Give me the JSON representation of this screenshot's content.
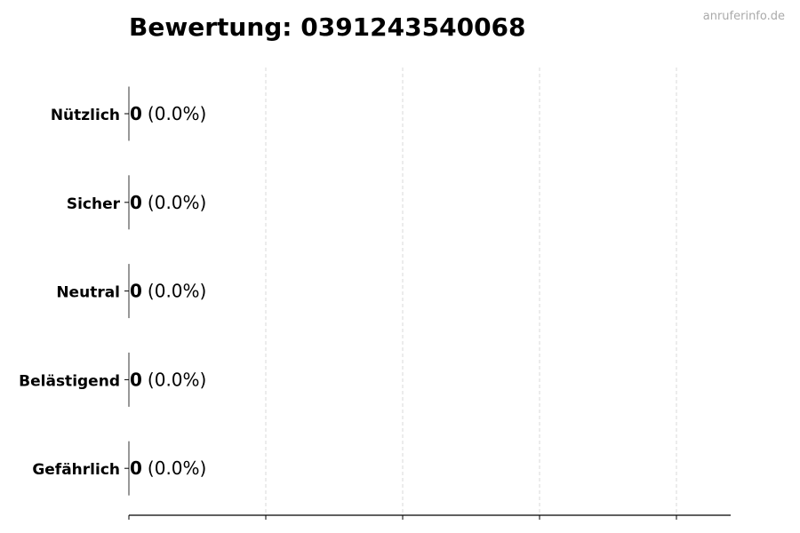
{
  "watermark": "anruferinfo.de",
  "chart_data": {
    "type": "bar",
    "orientation": "horizontal",
    "title": "Bewertung: 0391243540068",
    "categories": [
      "Nützlich",
      "Sicher",
      "Neutral",
      "Belästigend",
      "Gefährlich"
    ],
    "values": [
      0,
      0,
      0,
      0,
      0
    ],
    "data_labels": [
      {
        "count": "0",
        "percent": "(0.0%)"
      },
      {
        "count": "0",
        "percent": "(0.0%)"
      },
      {
        "count": "0",
        "percent": "(0.0%)"
      },
      {
        "count": "0",
        "percent": "(0.0%)"
      },
      {
        "count": "0",
        "percent": "(0.0%)"
      }
    ],
    "xlabel": "",
    "ylabel": "",
    "x_tick_labels_shown": false,
    "grid": "vertical dashed",
    "colors": {
      "grid": "#d9d9d9",
      "axis": "#000000",
      "bar_edge": "#333333"
    }
  }
}
